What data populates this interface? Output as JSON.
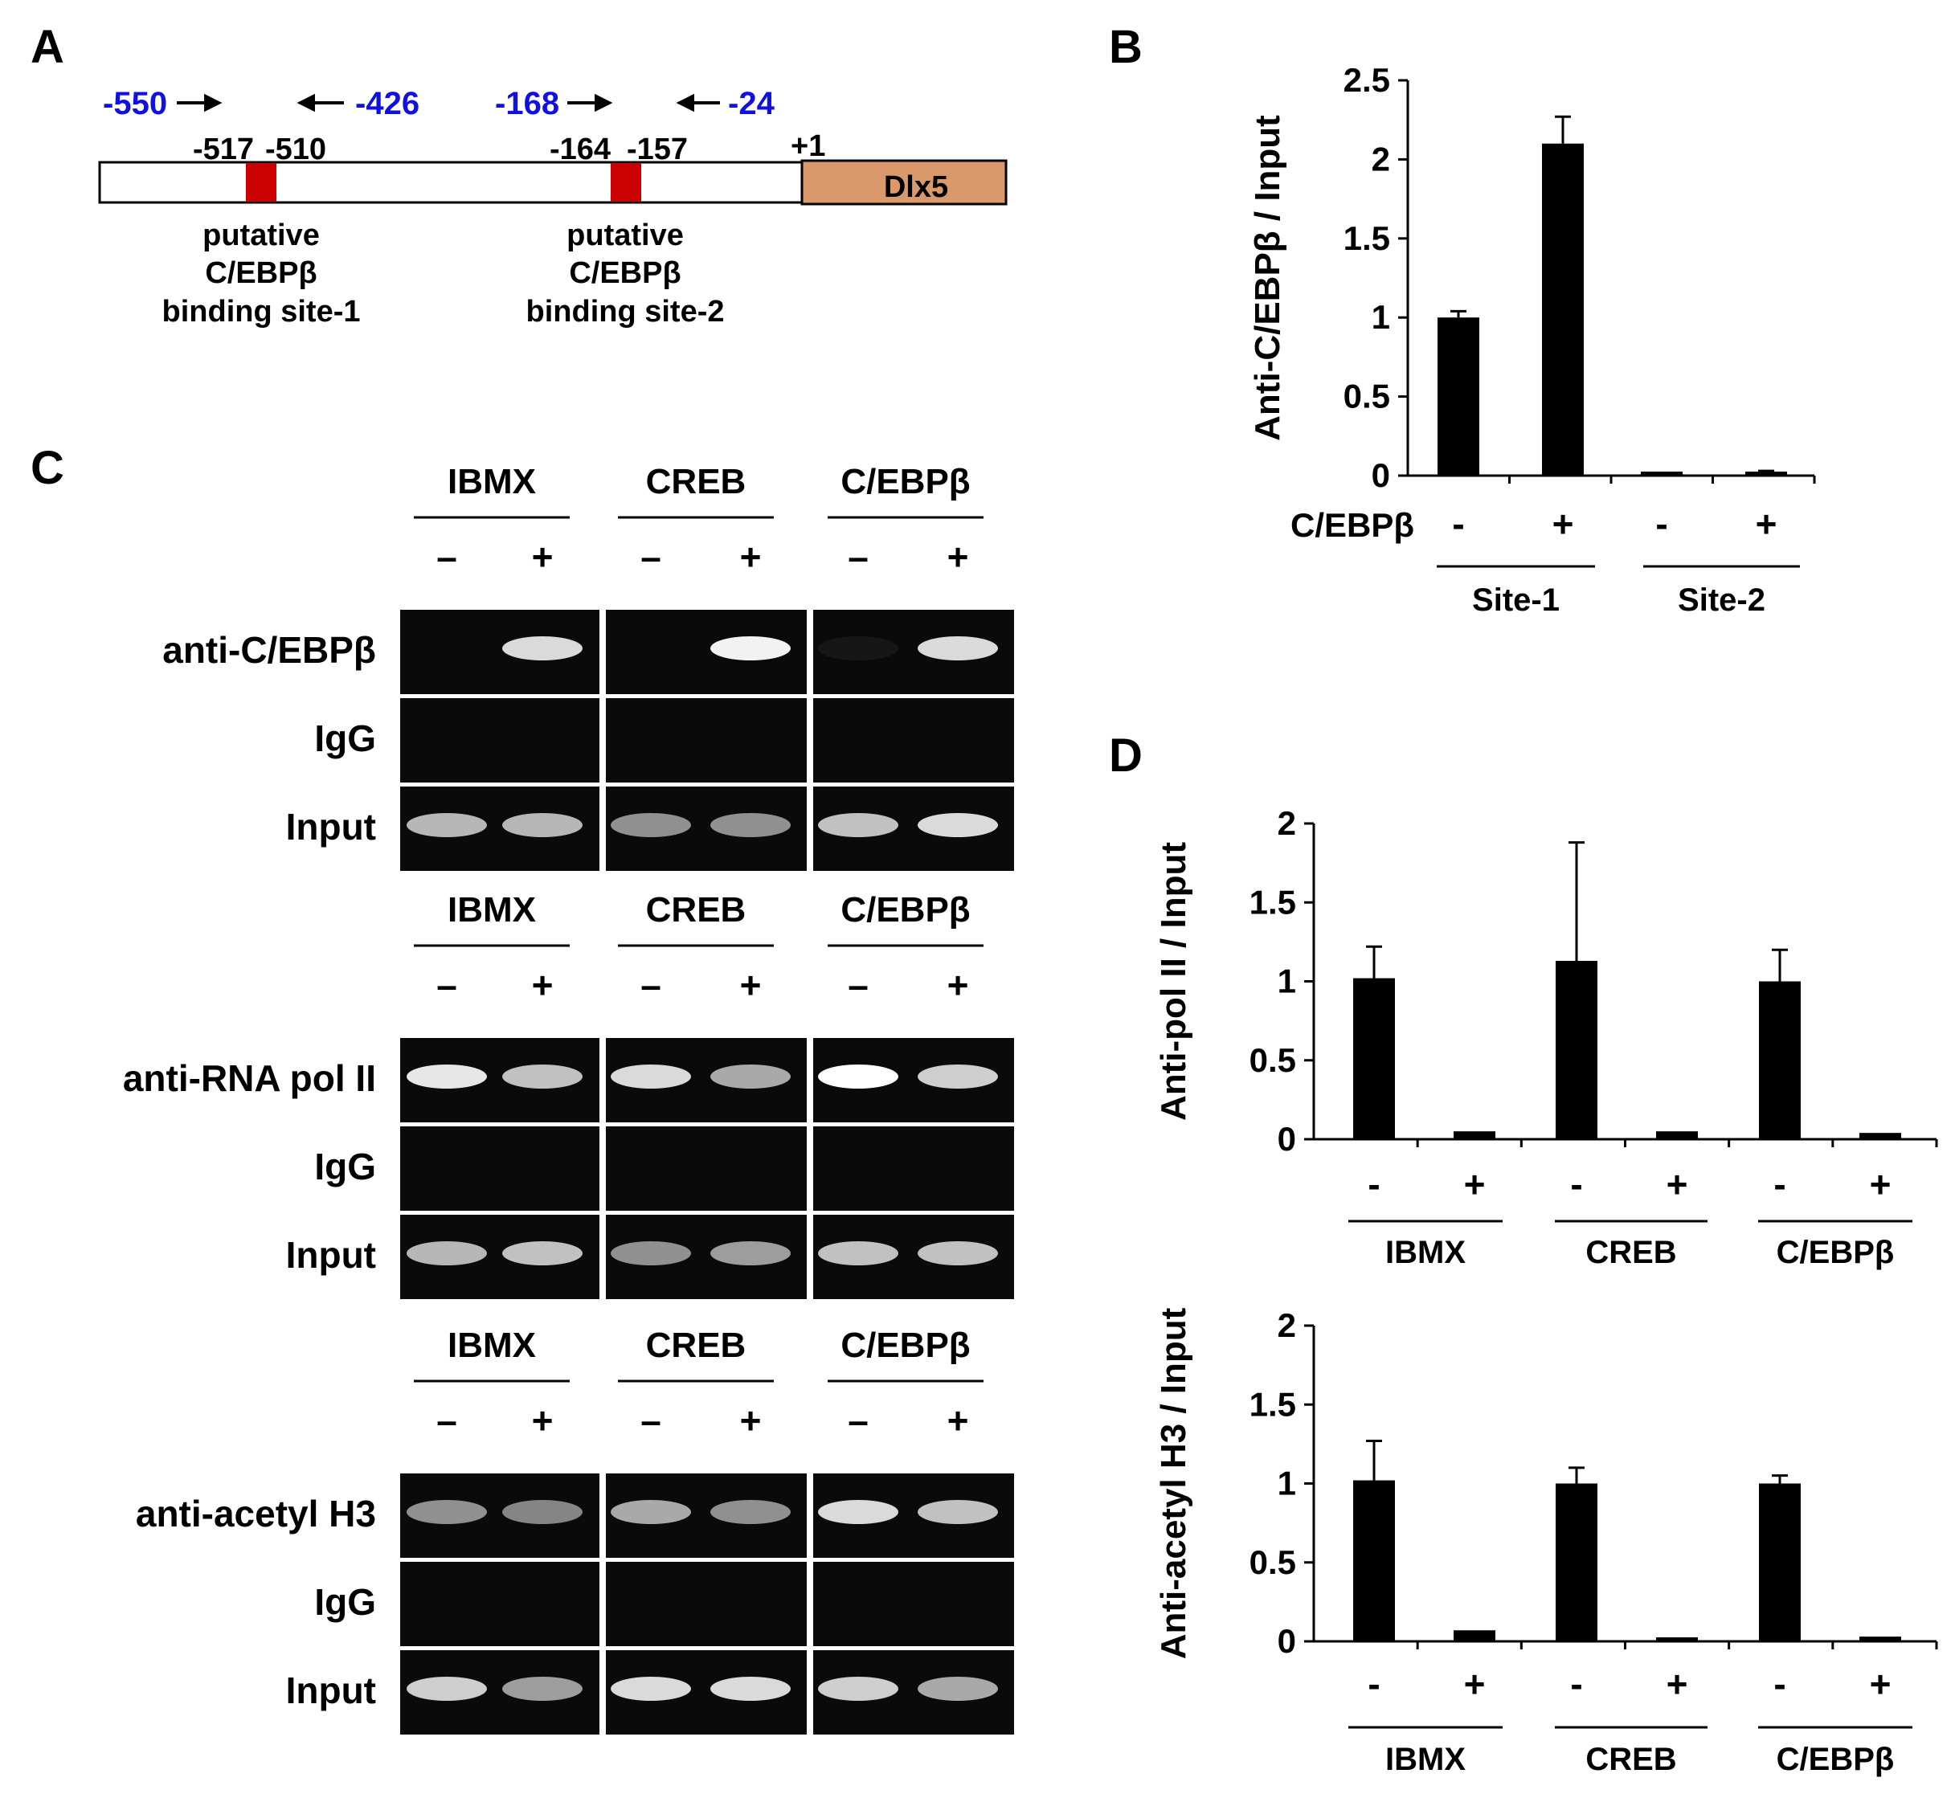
{
  "panel_a": {
    "label": "A",
    "primers": [
      "-550",
      "-426",
      "-168",
      "-24"
    ],
    "positions": [
      "-517",
      "-510",
      "-164",
      "-157",
      "+1"
    ],
    "gene": "Dlx5",
    "site1_lines": [
      "putative",
      "C/EBPβ",
      "binding site-1"
    ],
    "site2_lines": [
      "putative",
      "C/EBPβ",
      "binding site-2"
    ],
    "colors": {
      "primer_text": "#1010e0",
      "site_box": "#cc0000",
      "gene_box": "#d9996b"
    }
  },
  "panel_c": {
    "label": "C",
    "treatments": [
      "IBMX",
      "CREB",
      "C/EBPβ"
    ],
    "signs": [
      "–",
      "+"
    ],
    "rows": [
      {
        "antibody": "anti-C/EBPβ",
        "control": "IgG",
        "input": "Input"
      },
      {
        "antibody": "anti-RNA pol II",
        "control": "IgG",
        "input": "Input"
      },
      {
        "antibody": "anti-acetyl H3",
        "control": "IgG",
        "input": "Input"
      }
    ]
  },
  "chart_data": [
    {
      "panel": "B",
      "type": "bar",
      "ylabel": "Anti-C/EBPβ / Input",
      "ylim": [
        0,
        2.5
      ],
      "yticks": [
        "0",
        "0.5",
        "1",
        "1.5",
        "2",
        "2.5"
      ],
      "row_label": "C/EBPβ",
      "categories": [
        "-",
        "+",
        "-",
        "+"
      ],
      "groups": [
        "Site-1",
        "Site-2"
      ],
      "values": [
        1.0,
        2.1,
        0.02,
        0.02
      ],
      "errors": [
        0.04,
        0.17,
        0.0,
        0.01
      ]
    },
    {
      "panel": "D",
      "type": "bar",
      "ylabel": "Anti-pol II / Input",
      "ylim": [
        0,
        2
      ],
      "yticks": [
        "0",
        "0.5",
        "1",
        "1.5",
        "2"
      ],
      "categories": [
        "-",
        "+",
        "-",
        "+",
        "-",
        "+"
      ],
      "groups": [
        "IBMX",
        "CREB",
        "C/EBPβ"
      ],
      "values": [
        1.02,
        0.05,
        1.13,
        0.05,
        1.0,
        0.04
      ],
      "errors": [
        0.2,
        0.0,
        0.75,
        0.0,
        0.2,
        0.0
      ]
    },
    {
      "panel": "",
      "type": "bar",
      "ylabel": "Anti-acetyl H3 / Input",
      "ylim": [
        0,
        2
      ],
      "yticks": [
        "0",
        "0.5",
        "1",
        "1.5",
        "2"
      ],
      "categories": [
        "-",
        "+",
        "-",
        "+",
        "-",
        "+"
      ],
      "groups": [
        "IBMX",
        "CREB",
        "C/EBPβ"
      ],
      "values": [
        1.02,
        0.07,
        1.0,
        0.02,
        1.0,
        0.03
      ],
      "errors": [
        0.25,
        0.0,
        0.1,
        0.0,
        0.05,
        0.0
      ]
    }
  ]
}
